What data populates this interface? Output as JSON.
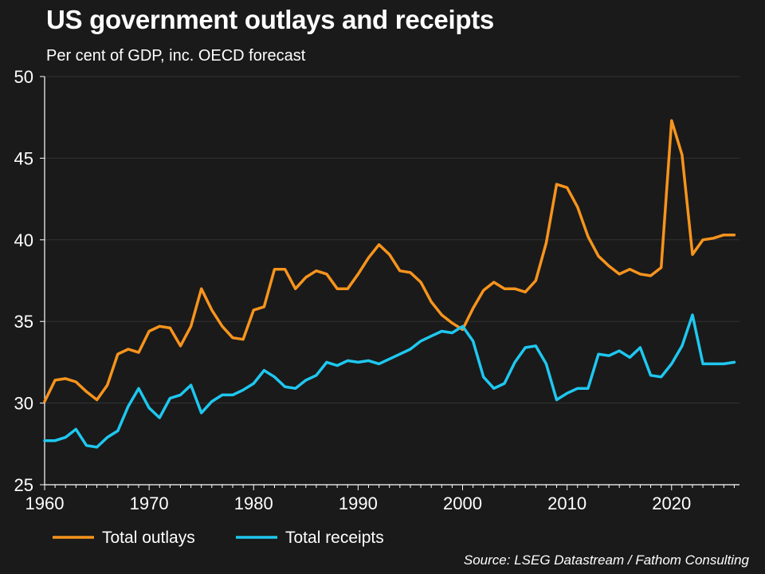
{
  "header": {
    "title": "US government outlays and receipts",
    "subtitle": "Per cent of GDP, inc. OECD forecast"
  },
  "footer": {
    "source": "Source: LSEG Datastream / Fathom Consulting"
  },
  "colors": {
    "background": "#1a1a1a",
    "outlays": "#f7941d",
    "receipts": "#1ec8f0",
    "axis": "#ffffff",
    "grid": "#333333"
  },
  "chart_data": {
    "type": "line",
    "title": "US government outlays and receipts",
    "subtitle": "Per cent of GDP, inc. OECD forecast",
    "xlabel": "",
    "ylabel": "",
    "xlim": [
      1960,
      2026.5
    ],
    "ylim": [
      25,
      50
    ],
    "x_ticks": [
      1960,
      1970,
      1980,
      1990,
      2000,
      2010,
      2020
    ],
    "y_ticks": [
      25,
      30,
      35,
      40,
      45,
      50
    ],
    "grid": true,
    "legend_position": "bottom-left",
    "x": [
      1960,
      1961,
      1962,
      1963,
      1964,
      1965,
      1966,
      1967,
      1968,
      1969,
      1970,
      1971,
      1972,
      1973,
      1974,
      1975,
      1976,
      1977,
      1978,
      1979,
      1980,
      1981,
      1982,
      1983,
      1984,
      1985,
      1986,
      1987,
      1988,
      1989,
      1990,
      1991,
      1992,
      1993,
      1994,
      1995,
      1996,
      1997,
      1998,
      1999,
      2000,
      2001,
      2002,
      2003,
      2004,
      2005,
      2006,
      2007,
      2008,
      2009,
      2010,
      2011,
      2012,
      2013,
      2014,
      2015,
      2016,
      2017,
      2018,
      2019,
      2020,
      2021,
      2022,
      2023,
      2024,
      2025,
      2026
    ],
    "series": [
      {
        "name": "Total outlays",
        "values": [
          30.1,
          31.4,
          31.5,
          31.3,
          30.7,
          30.2,
          31.1,
          33.0,
          33.3,
          33.1,
          34.4,
          34.7,
          34.6,
          33.5,
          34.7,
          37.0,
          35.7,
          34.7,
          34.0,
          33.9,
          35.7,
          35.9,
          38.2,
          38.2,
          37.0,
          37.7,
          38.1,
          37.9,
          37.0,
          37.0,
          37.9,
          38.9,
          39.7,
          39.1,
          38.1,
          38.0,
          37.4,
          36.2,
          35.4,
          34.9,
          34.5,
          35.8,
          36.9,
          37.4,
          37.0,
          37.0,
          36.8,
          37.5,
          39.8,
          43.4,
          43.2,
          42.0,
          40.2,
          39.0,
          38.4,
          37.9,
          38.2,
          37.9,
          37.8,
          38.3,
          47.3,
          45.2,
          39.1,
          40.0,
          40.1,
          40.3,
          40.3
        ]
      },
      {
        "name": "Total receipts",
        "values": [
          27.7,
          27.7,
          27.9,
          28.4,
          27.4,
          27.3,
          27.9,
          28.3,
          29.8,
          30.9,
          29.7,
          29.1,
          30.3,
          30.5,
          31.1,
          29.4,
          30.1,
          30.5,
          30.5,
          30.8,
          31.2,
          32.0,
          31.6,
          31.0,
          30.9,
          31.4,
          31.7,
          32.5,
          32.3,
          32.6,
          32.5,
          32.6,
          32.4,
          32.7,
          33.0,
          33.3,
          33.8,
          34.1,
          34.4,
          34.3,
          34.7,
          33.8,
          31.6,
          30.9,
          31.2,
          32.5,
          33.4,
          33.5,
          32.4,
          30.2,
          30.6,
          30.9,
          30.9,
          33.0,
          32.9,
          33.2,
          32.8,
          33.4,
          31.7,
          31.6,
          32.4,
          33.5,
          35.4,
          32.4,
          32.4,
          32.4,
          32.5
        ]
      }
    ]
  }
}
